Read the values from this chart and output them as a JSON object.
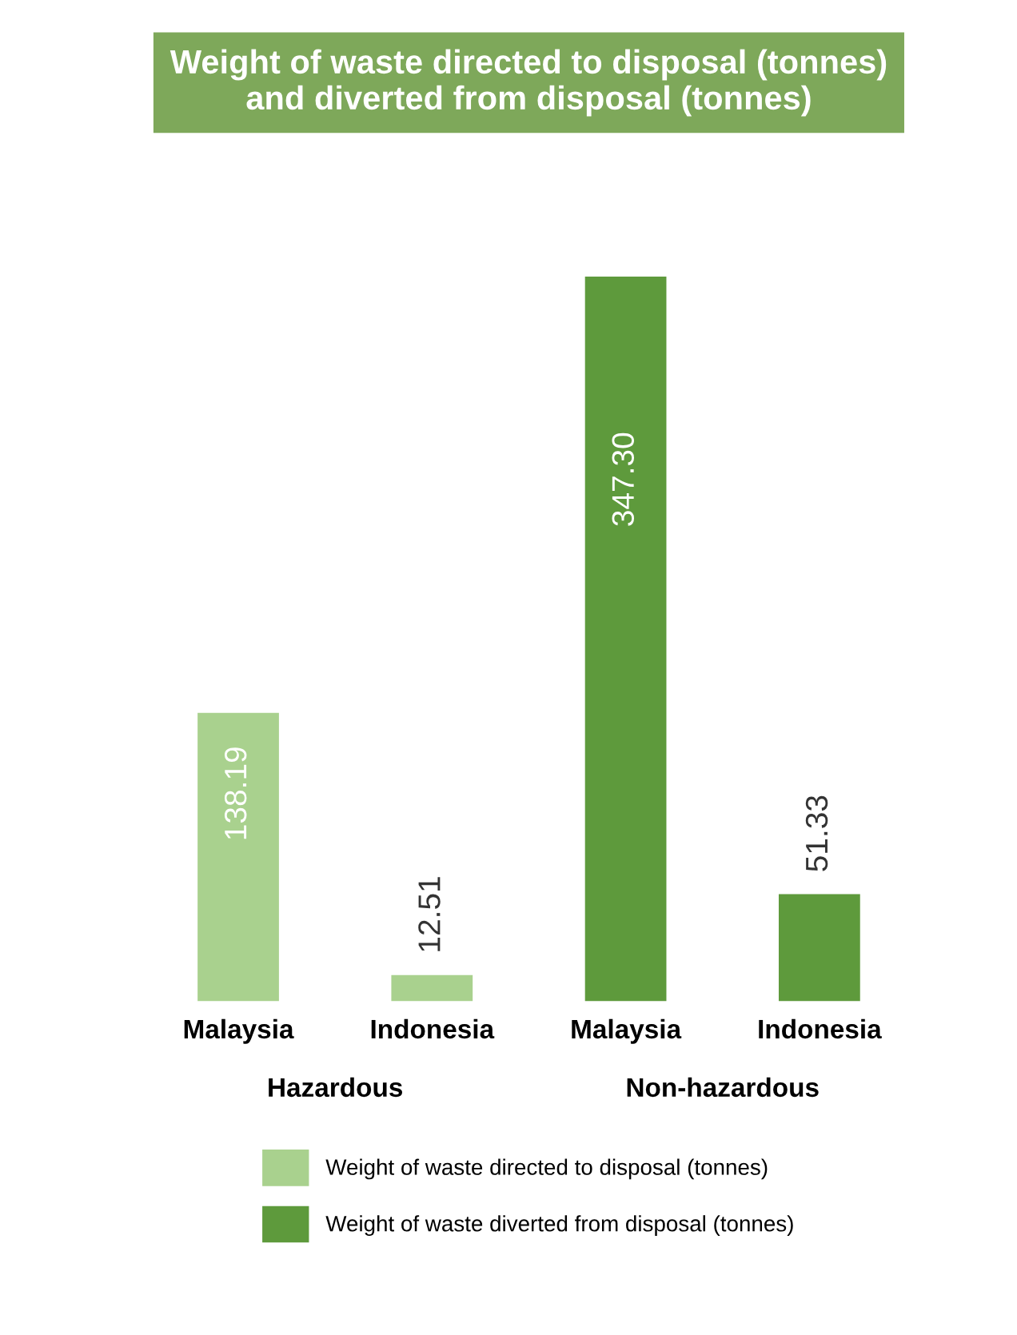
{
  "chart_data": {
    "type": "bar",
    "title": "Weight of waste directed to disposal (tonnes)\nand diverted from disposal (tonnes)",
    "categories": [
      "Malaysia",
      "Indonesia",
      "Malaysia",
      "Indonesia"
    ],
    "series": [
      {
        "name": "Weight of waste directed to disposal (tonnes)",
        "color": "#a9d18e",
        "values": [
          138.19,
          12.51,
          null,
          null
        ],
        "value_labels": [
          "138.19",
          "12.51",
          null,
          null
        ]
      },
      {
        "name": "Weight of waste diverted from disposal (tonnes)",
        "color": "#5e9a3c",
        "values": [
          null,
          null,
          347.3,
          51.33
        ],
        "value_labels": [
          null,
          null,
          "347.30",
          "51.33"
        ]
      }
    ],
    "annotations": [
      "Hazardous",
      "Non-hazardous"
    ],
    "legend": "bottom",
    "grid": false
  }
}
